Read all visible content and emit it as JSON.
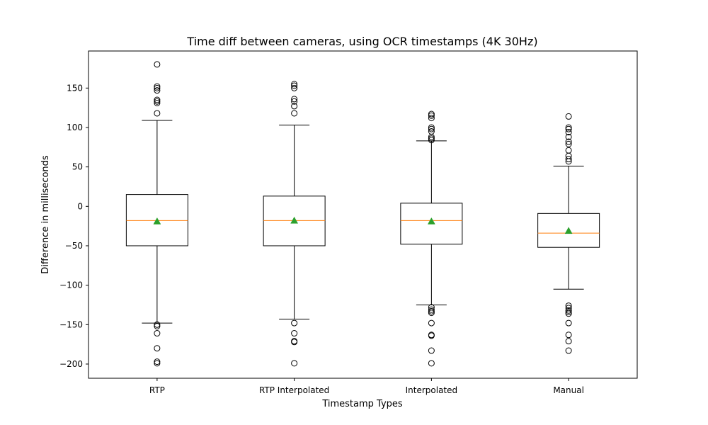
{
  "chart_data": {
    "type": "box",
    "title": "Time diff between cameras, using OCR timestamps (4K 30Hz)",
    "xlabel": "Timestamp Types",
    "ylabel": "Difference in milliseconds",
    "ylim": [
      -218,
      197
    ],
    "yticks": [
      150,
      100,
      50,
      0,
      -50,
      -100,
      -150,
      -200
    ],
    "categories": [
      "RTP",
      "RTP Interpolated",
      "Interpolated",
      "Manual"
    ],
    "boxes": [
      {
        "category": "RTP",
        "whisker_high": 109,
        "q3": 15,
        "median": -18,
        "mean": -19,
        "q1": -50,
        "whisker_low": -148,
        "outliers_high": [
          118,
          131,
          133,
          135,
          147,
          150,
          152,
          180
        ],
        "outliers_low": [
          -150,
          -152,
          -161,
          -180,
          -197,
          -199
        ]
      },
      {
        "category": "RTP Interpolated",
        "whisker_high": 103,
        "q3": 13,
        "median": -18,
        "mean": -18,
        "q1": -50,
        "whisker_low": -143,
        "outliers_high": [
          118,
          127,
          133,
          136,
          150,
          153,
          155
        ],
        "outliers_low": [
          -148,
          -161,
          -171,
          -172,
          -199
        ]
      },
      {
        "category": "Interpolated",
        "whisker_high": 83,
        "q3": 4,
        "median": -18,
        "mean": -19,
        "q1": -48,
        "whisker_low": -125,
        "outliers_high": [
          84,
          86,
          88,
          95,
          98,
          100,
          112,
          115,
          117
        ],
        "outliers_low": [
          -128,
          -131,
          -133,
          -135,
          -148,
          -163,
          -164,
          -183,
          -199
        ]
      },
      {
        "category": "Manual",
        "whisker_high": 51,
        "q3": -9,
        "median": -34,
        "mean": -31,
        "q1": -52,
        "whisker_low": -105,
        "outliers_high": [
          57,
          60,
          64,
          71,
          79,
          82,
          88,
          94,
          98,
          100,
          114
        ],
        "outliers_low": [
          -126,
          -129,
          -132,
          -134,
          -136,
          -148,
          -163,
          -171,
          -183
        ]
      }
    ],
    "colors": {
      "box": "#000000",
      "median": "#ff7f0e",
      "mean": "#2ca02c",
      "outlier": "#000000"
    },
    "grid": false,
    "legend": false
  }
}
